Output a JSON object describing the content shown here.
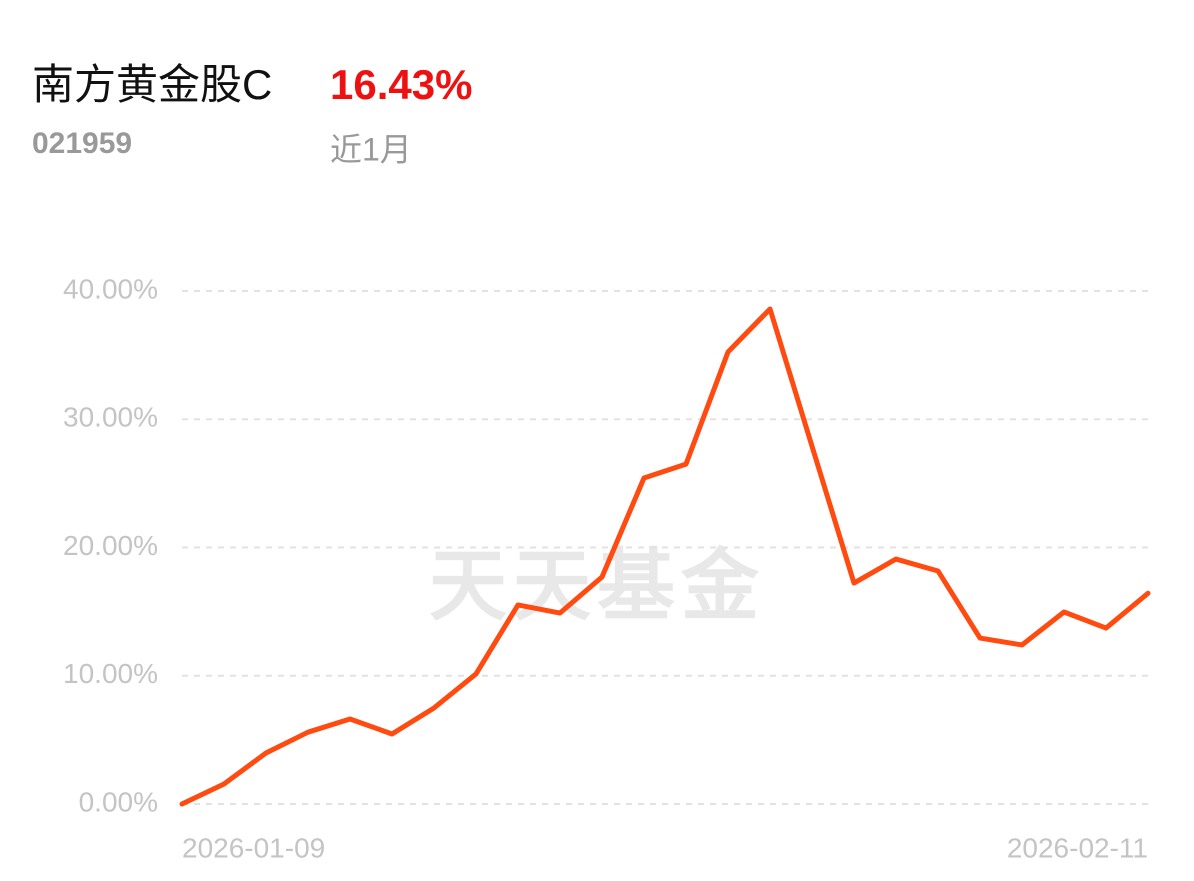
{
  "chart_data": {
    "type": "line",
    "title": "南方黄金股C",
    "subtitle": "021959",
    "headline_value": "16.43%",
    "period": "近1月",
    "watermark": "天天基金",
    "categories": [
      "2026-01-09",
      null,
      null,
      null,
      null,
      null,
      null,
      null,
      null,
      null,
      null,
      null,
      null,
      null,
      null,
      null,
      null,
      null,
      null,
      null,
      null,
      null,
      null,
      "2026-02-11"
    ],
    "series": [
      {
        "name": "南方黄金股C",
        "color": "#ff4a10",
        "values": [
          0,
          1.56,
          3.98,
          5.6,
          6.63,
          5.46,
          7.49,
          10.14,
          15.52,
          14.89,
          17.7,
          25.42,
          26.5,
          35.24,
          38.6,
          27.9,
          17.23,
          19.1,
          18.17,
          12.94,
          12.4,
          14.97,
          13.72,
          16.43
        ]
      }
    ],
    "ylim": [
      0,
      40
    ],
    "yticks": [
      {
        "value": 0,
        "label": "0.00%"
      },
      {
        "value": 10,
        "label": "10.00%"
      },
      {
        "value": 20,
        "label": "20.00%"
      },
      {
        "value": 30,
        "label": "30.00%"
      },
      {
        "value": 40,
        "label": "40.00%"
      }
    ],
    "grid": true
  }
}
